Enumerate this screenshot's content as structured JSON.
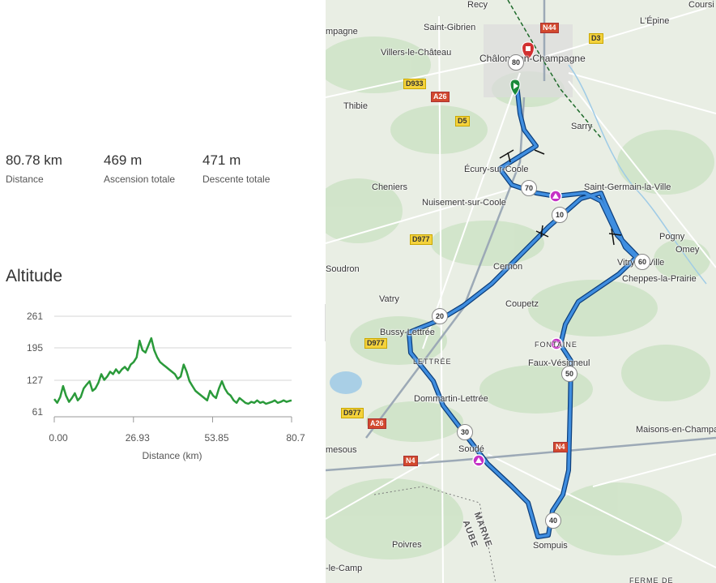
{
  "stats": [
    {
      "value": "80.78 km",
      "label": "Distance"
    },
    {
      "value": "469 m",
      "label": "Ascension totale"
    },
    {
      "value": "471 m",
      "label": "Descente totale"
    }
  ],
  "altitude": {
    "title": "Altitude",
    "chart_data": {
      "type": "line",
      "title": "Altitude",
      "xlabel": "Distance (km)",
      "ylabel": "",
      "xlim": [
        0,
        80.7
      ],
      "ylim": [
        61,
        261
      ],
      "y_ticks": [
        "261",
        "195",
        "127",
        "61"
      ],
      "x_ticks": [
        "0.00",
        "26.93",
        "53.85",
        "80.7"
      ],
      "series_color": "#2a9a3a",
      "x": [
        0,
        1,
        2,
        3,
        4,
        5,
        6,
        7,
        8,
        9,
        10,
        11,
        12,
        13,
        14,
        15,
        16,
        17,
        18,
        19,
        20,
        21,
        22,
        23,
        24,
        25,
        26,
        27,
        28,
        29,
        30,
        31,
        32,
        33,
        34,
        35,
        36,
        37,
        38,
        39,
        40,
        41,
        42,
        43,
        44,
        45,
        46,
        47,
        48,
        49,
        50,
        51,
        52,
        53,
        54,
        55,
        56,
        57,
        58,
        59,
        60,
        61,
        62,
        63,
        64,
        65,
        66,
        67,
        68,
        69,
        70,
        71,
        72,
        73,
        74,
        75,
        76,
        77,
        78,
        79,
        80,
        80.7
      ],
      "y": [
        88,
        80,
        92,
        115,
        95,
        82,
        90,
        100,
        85,
        92,
        110,
        118,
        125,
        105,
        110,
        122,
        140,
        128,
        135,
        145,
        140,
        150,
        142,
        150,
        155,
        148,
        160,
        165,
        175,
        210,
        190,
        185,
        200,
        215,
        190,
        175,
        165,
        160,
        155,
        150,
        145,
        140,
        130,
        135,
        160,
        145,
        125,
        115,
        105,
        100,
        95,
        90,
        85,
        105,
        95,
        90,
        110,
        125,
        110,
        100,
        95,
        85,
        80,
        90,
        85,
        80,
        78,
        82,
        80,
        85,
        80,
        82,
        78,
        80,
        82,
        85,
        80,
        82,
        85,
        82,
        84,
        85
      ]
    }
  },
  "map": {
    "towns": [
      {
        "name": "Saint-Gibrien"
      },
      {
        "name": "Villers-le-Château"
      },
      {
        "name": "Châlons-en-Champagne"
      },
      {
        "name": "Thibie"
      },
      {
        "name": "Sarry"
      },
      {
        "name": "L'Épine"
      },
      {
        "name": "Écury-sur-Coole"
      },
      {
        "name": "Cheniers"
      },
      {
        "name": "Nuisement-sur-Coole"
      },
      {
        "name": "Saint-Germain-la-Ville"
      },
      {
        "name": "Pogny"
      },
      {
        "name": "Omey"
      },
      {
        "name": "Vitry-la-Ville"
      },
      {
        "name": "Cheppes-la-Prairie"
      },
      {
        "name": "Cernon"
      },
      {
        "name": "Coupetz"
      },
      {
        "name": "Vatry"
      },
      {
        "name": "Bussy-Lettrée"
      },
      {
        "name": "Faux-Vésigneul"
      },
      {
        "name": "Dommartin-Lettrée"
      },
      {
        "name": "Soudé"
      },
      {
        "name": "Maisons-en-Champagne"
      },
      {
        "name": "Poivres"
      },
      {
        "name": "Sompuis"
      },
      {
        "name": "Soudron"
      },
      {
        "name": "Coursi"
      },
      {
        "name": "Recy"
      },
      {
        "name": "mpagne"
      },
      {
        "name": "mesous"
      },
      {
        "name": "-le-Camp"
      },
      {
        "name": "FERME DE"
      }
    ],
    "departments": [
      "MARNE",
      "AUBE"
    ],
    "small_labels": [
      "LETTRÉE",
      "FONTAINE"
    ],
    "roads": [
      "D933",
      "A26",
      "D5",
      "N44",
      "D3",
      "D977",
      "D977",
      "D977",
      "A26",
      "N4",
      "N4"
    ],
    "km_markers": [
      "80",
      "70",
      "10",
      "60",
      "20",
      "50",
      "30",
      "40"
    ]
  }
}
